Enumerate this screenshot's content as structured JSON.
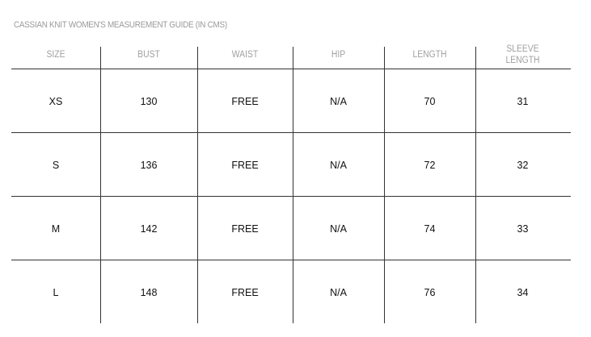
{
  "title": "CASSIAN KNIT WOMEN'S MEASUREMENT GUIDE (IN CMS)",
  "table": {
    "headers": [
      "SIZE",
      "BUST",
      "WAIST",
      "HIP",
      "LENGTH",
      "SLEEVE LENGTH"
    ],
    "rows": [
      [
        "XS",
        "130",
        "FREE",
        "N/A",
        "70",
        "31"
      ],
      [
        "S",
        "136",
        "FREE",
        "N/A",
        "72",
        "32"
      ],
      [
        "M",
        "142",
        "FREE",
        "N/A",
        "74",
        "33"
      ],
      [
        "L",
        "148",
        "FREE",
        "N/A",
        "76",
        "34"
      ]
    ]
  }
}
